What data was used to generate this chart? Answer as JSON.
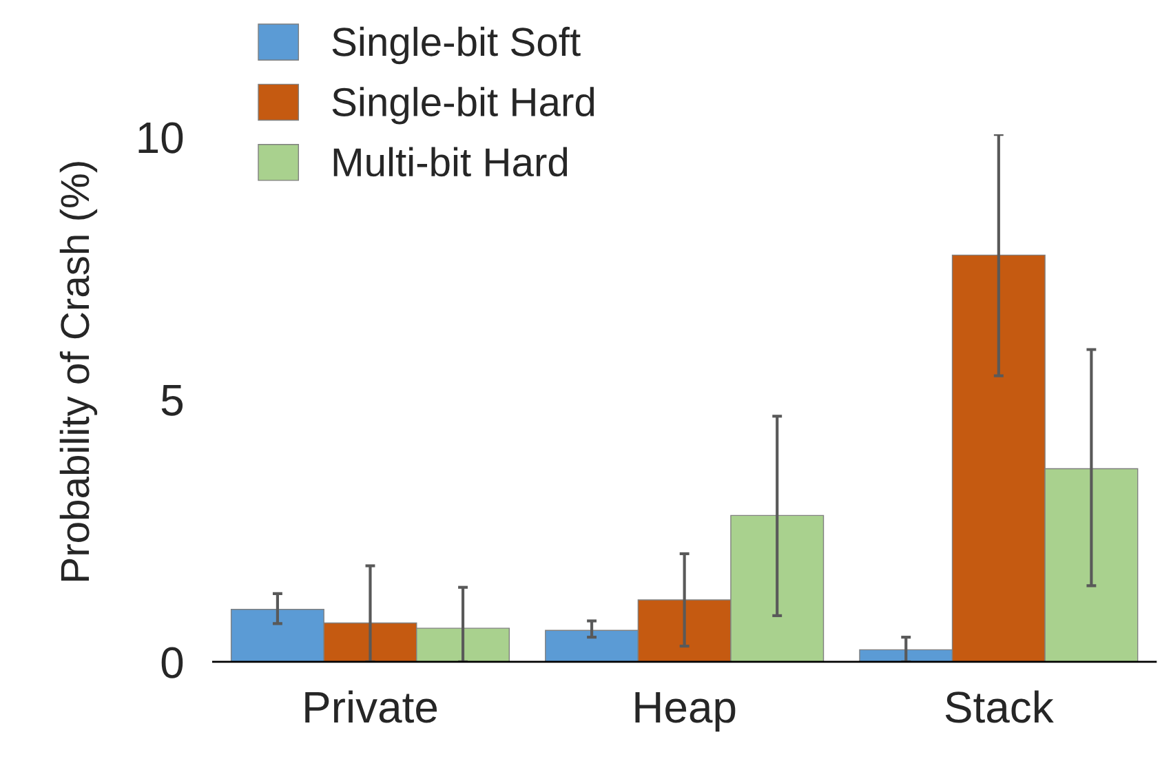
{
  "chart_data": {
    "type": "bar",
    "ylabel": "Probability of Crash (%)",
    "categories": [
      "Private",
      "Heap",
      "Stack"
    ],
    "series": [
      {
        "name": "Single-bit Soft",
        "color": "#5b9bd5",
        "values": [
          1.0,
          0.6,
          0.23
        ],
        "errors": [
          [
            0.73,
            1.3
          ],
          [
            0.47,
            0.78
          ],
          [
            0,
            0.47
          ]
        ]
      },
      {
        "name": "Single-bit Hard",
        "color": "#c55a11",
        "values": [
          0.74,
          1.18,
          7.75
        ],
        "errors": [
          [
            0,
            1.83
          ],
          [
            0.3,
            2.06
          ],
          [
            5.45,
            10.05
          ]
        ]
      },
      {
        "name": "Multi-bit Hard",
        "color": "#a9d18e",
        "values": [
          0.64,
          2.79,
          3.68
        ],
        "errors": [
          [
            0,
            1.42
          ],
          [
            0.88,
            4.68
          ],
          [
            1.45,
            5.95
          ]
        ]
      }
    ],
    "ylim": [
      0,
      10.05
    ],
    "yticks": [
      0,
      5,
      10
    ],
    "grid": false,
    "legend": "top left"
  }
}
